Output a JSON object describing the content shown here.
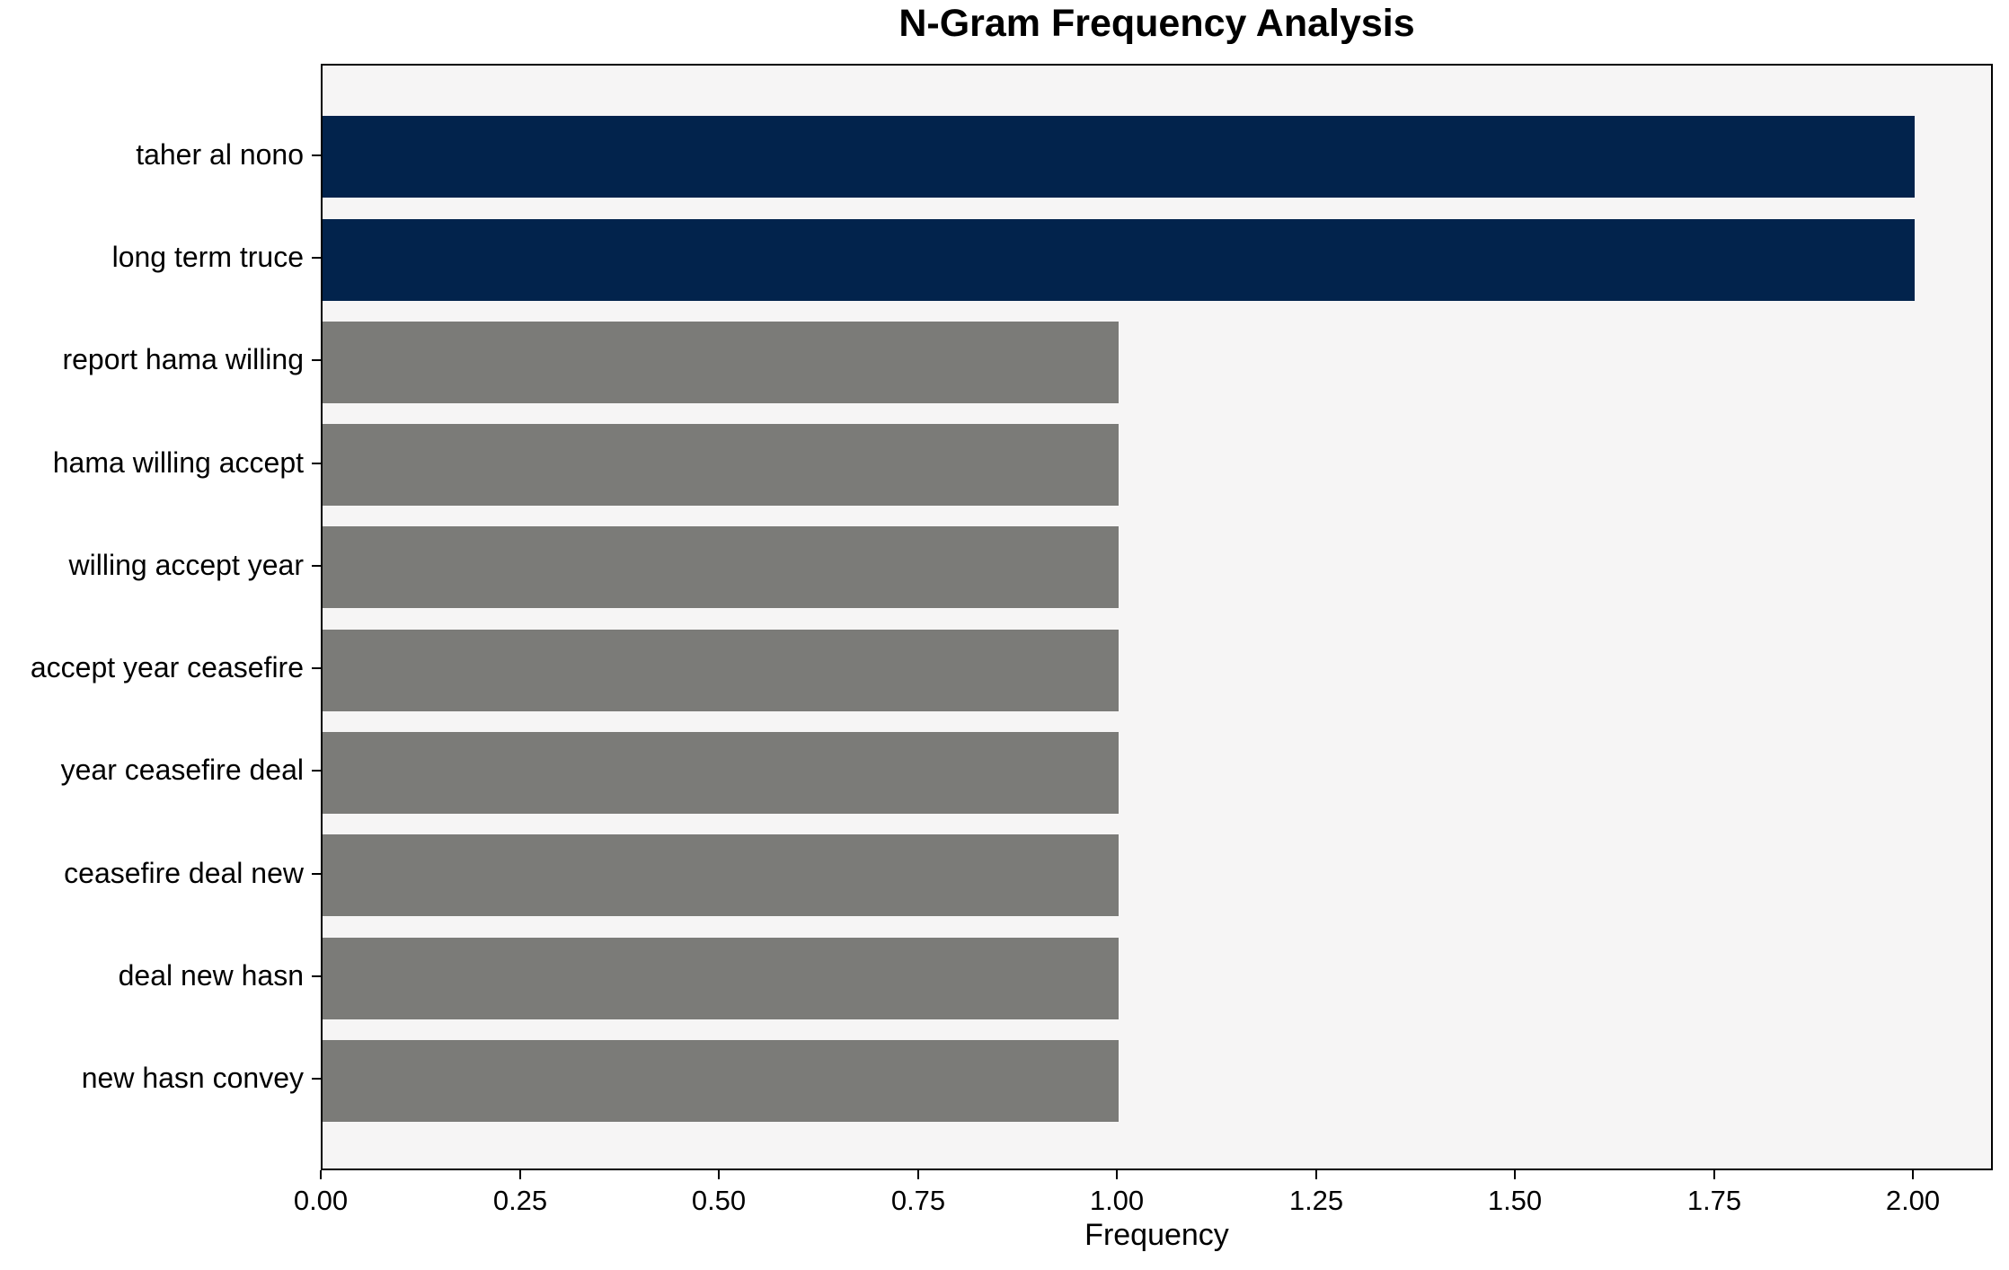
{
  "chart_data": {
    "type": "bar",
    "orientation": "horizontal",
    "title": "N-Gram Frequency Analysis",
    "xlabel": "Frequency",
    "ylabel": "",
    "categories": [
      "taher al nono",
      "long term truce",
      "report hama willing",
      "hama willing accept",
      "willing accept year",
      "accept year ceasefire",
      "year ceasefire deal",
      "ceasefire deal new",
      "deal new hasn",
      "new hasn convey"
    ],
    "values": [
      2,
      2,
      1,
      1,
      1,
      1,
      1,
      1,
      1,
      1
    ],
    "xlim": [
      0,
      2.1
    ],
    "xtick_values": [
      0,
      0.25,
      0.5,
      0.75,
      1.0,
      1.25,
      1.5,
      1.75,
      2.0
    ],
    "xtick_labels": [
      "0.00",
      "0.25",
      "0.50",
      "0.75",
      "1.00",
      "1.25",
      "1.50",
      "1.75",
      "2.00"
    ],
    "bar_colors": [
      "#02234C",
      "#02234C",
      "#7B7B78",
      "#7B7B78",
      "#7B7B78",
      "#7B7B78",
      "#7B7B78",
      "#7B7B78",
      "#7B7B78",
      "#7B7B78"
    ],
    "colors": {
      "highlight_bar": "#02234C",
      "default_bar": "#7B7B78",
      "plot_background": "#F6F5F5",
      "figure_background": "#FFFFFF",
      "spine": "#000000",
      "text": "#000000"
    },
    "grid": false,
    "legend": null
  }
}
